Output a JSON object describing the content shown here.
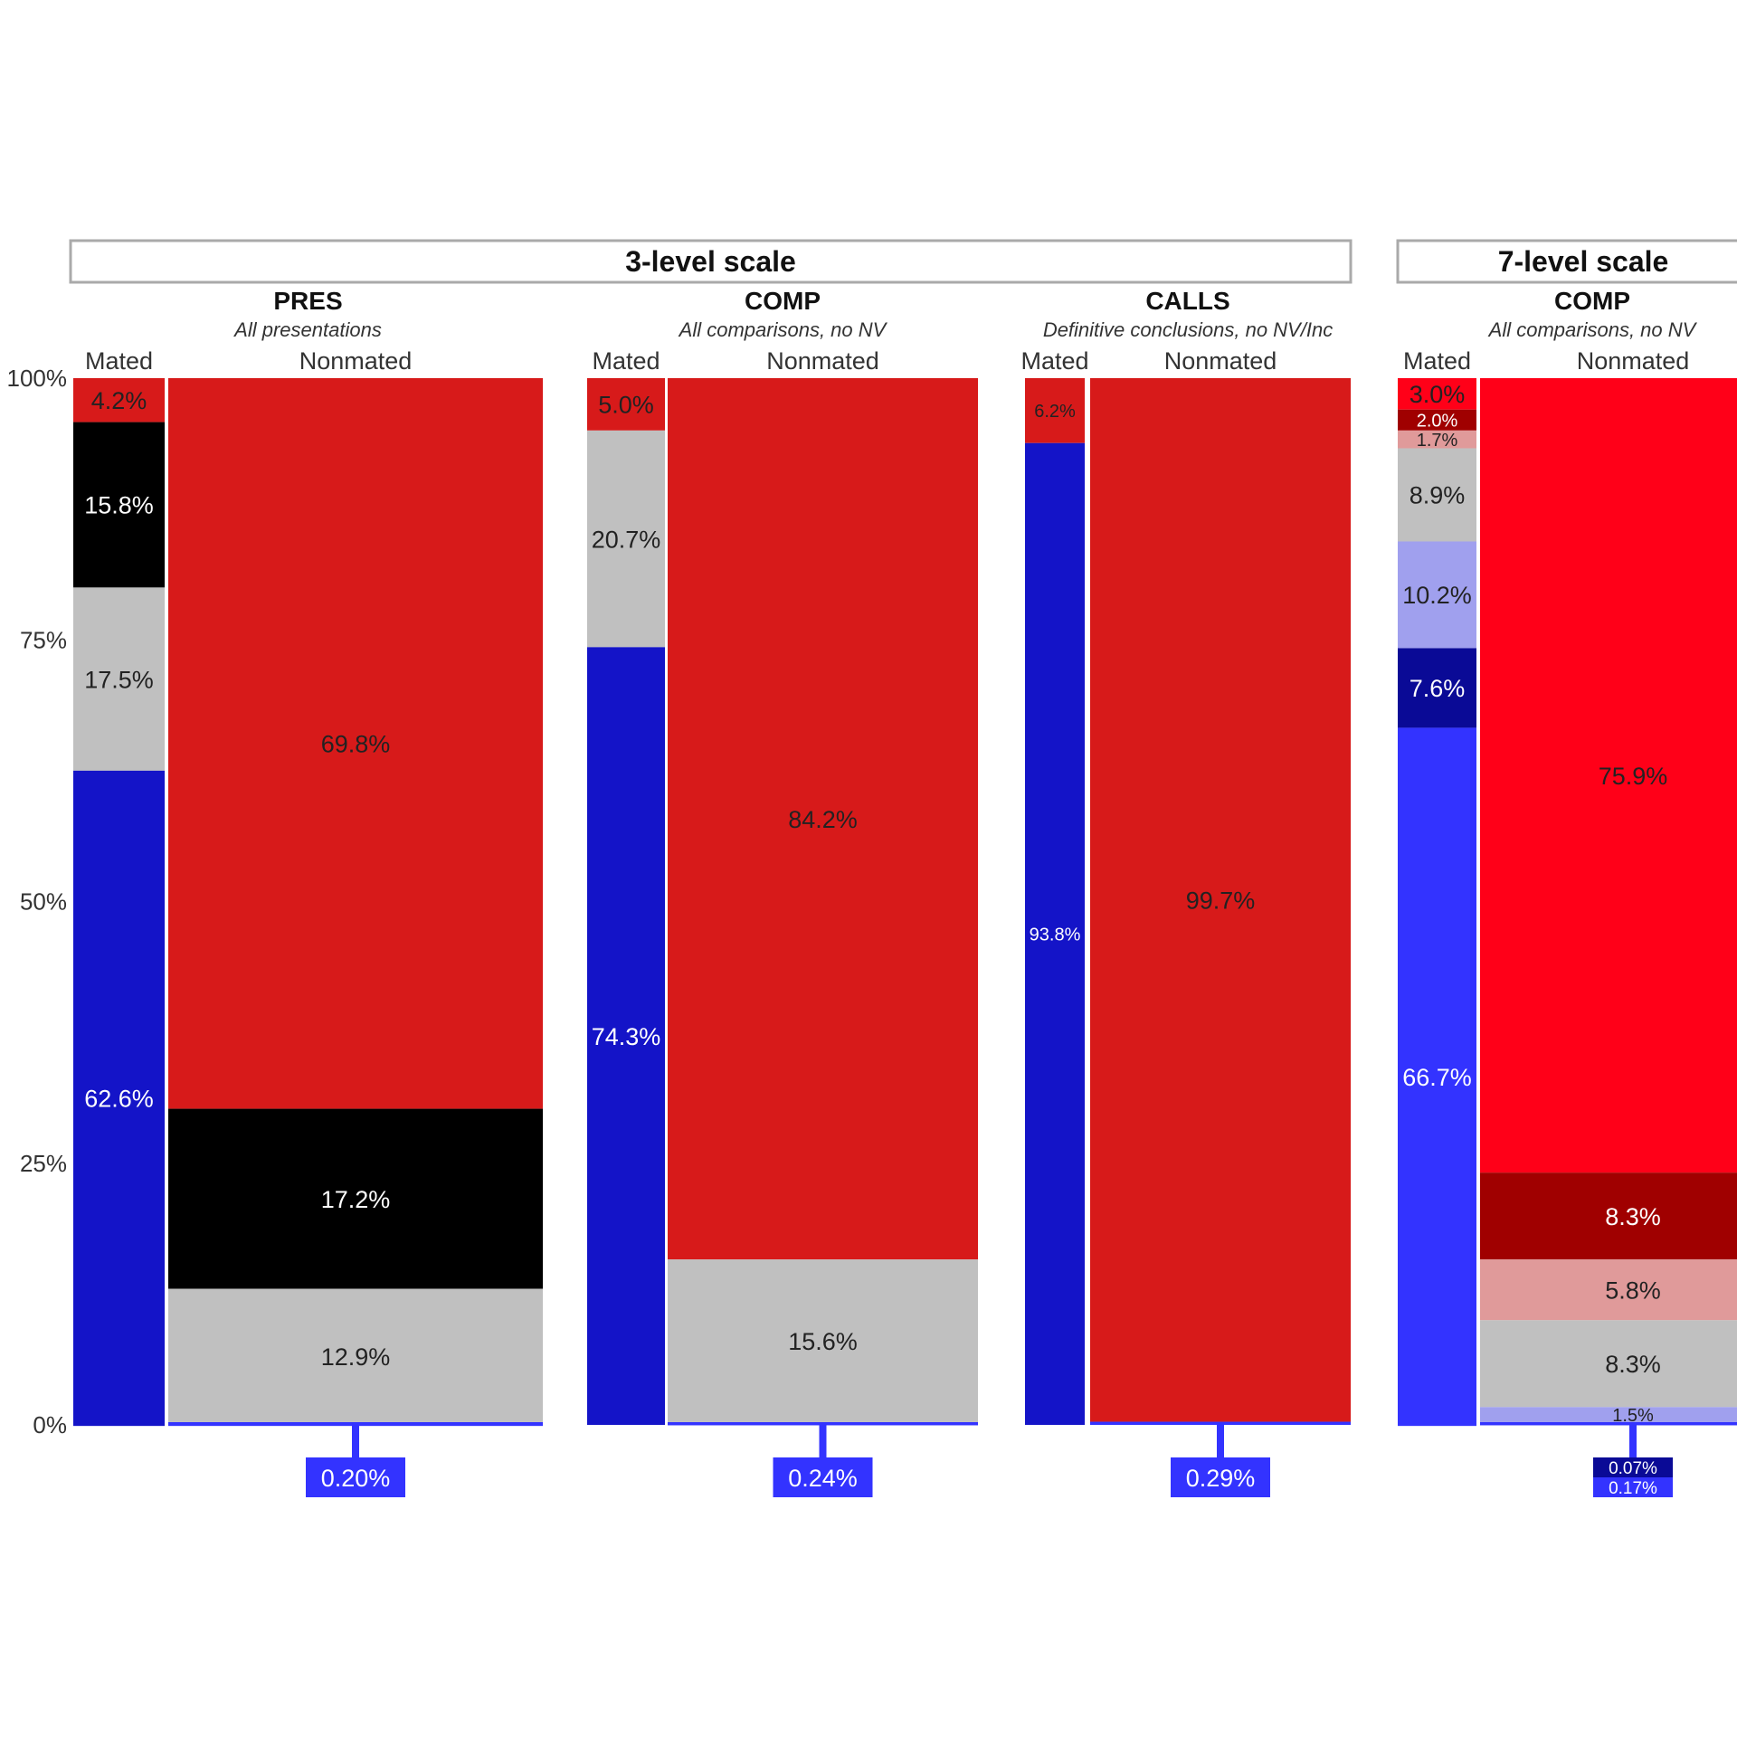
{
  "chart_data": {
    "type": "bar",
    "stacked": true,
    "ylim": [
      0,
      100
    ],
    "yticks": [
      "0%",
      "25%",
      "50%",
      "75%",
      "100%"
    ],
    "grid": false,
    "scale_groups": [
      "3-level scale",
      "7-level scale"
    ],
    "column_labels": {
      "mated": "Mated",
      "nonmated": "Nonmated"
    },
    "panels": [
      {
        "group": 0,
        "title": "PRES",
        "subtitle": "All presentations",
        "mated": [
          {
            "value": 4.2,
            "label": "4.2%",
            "color": "#d71a1a"
          },
          {
            "value": 15.8,
            "label": "15.8%",
            "color": "#000000"
          },
          {
            "value": 17.5,
            "label": "17.5%",
            "color": "#c0c0c0"
          },
          {
            "value": 62.6,
            "label": "62.6%",
            "color": "#1414c8"
          }
        ],
        "nonmated": [
          {
            "value": 69.8,
            "label": "69.8%",
            "color": "#d71a1a"
          },
          {
            "value": 17.2,
            "label": "17.2%",
            "color": "#000000"
          },
          {
            "value": 12.9,
            "label": "12.9%",
            "color": "#c0c0c0"
          },
          {
            "value": 0.2,
            "label": "0.20%",
            "color": "#3333ff"
          }
        ]
      },
      {
        "group": 0,
        "title": "COMP",
        "subtitle": "All comparisons, no NV",
        "mated": [
          {
            "value": 5.0,
            "label": "5.0%",
            "color": "#d71a1a"
          },
          {
            "value": 20.7,
            "label": "20.7%",
            "color": "#c0c0c0"
          },
          {
            "value": 74.3,
            "label": "74.3%",
            "color": "#1414c8"
          }
        ],
        "nonmated": [
          {
            "value": 84.2,
            "label": "84.2%",
            "color": "#d71a1a"
          },
          {
            "value": 15.6,
            "label": "15.6%",
            "color": "#c0c0c0"
          },
          {
            "value": 0.24,
            "label": "0.24%",
            "color": "#3333ff"
          }
        ]
      },
      {
        "group": 0,
        "title": "CALLS",
        "subtitle": "Definitive conclusions, no NV/Inc",
        "mated": [
          {
            "value": 6.2,
            "label": "6.2%",
            "color": "#d71a1a"
          },
          {
            "value": 93.8,
            "label": "93.8%",
            "color": "#1414c8"
          }
        ],
        "nonmated": [
          {
            "value": 99.7,
            "label": "99.7%",
            "color": "#d71a1a"
          },
          {
            "value": 0.29,
            "label": "0.29%",
            "color": "#3333ff"
          }
        ]
      },
      {
        "group": 1,
        "title": "COMP",
        "subtitle": "All comparisons, no NV",
        "mated": [
          {
            "value": 3.0,
            "label": "3.0%",
            "color": "#ff0018"
          },
          {
            "value": 2.0,
            "label": "2.0%",
            "color": "#a00000"
          },
          {
            "value": 1.7,
            "label": "1.7%",
            "color": "#e09a9a"
          },
          {
            "value": 8.9,
            "label": "8.9%",
            "color": "#c0c0c0"
          },
          {
            "value": 10.2,
            "label": "10.2%",
            "color": "#a0a0ee"
          },
          {
            "value": 7.6,
            "label": "7.6%",
            "color": "#0a0a96"
          },
          {
            "value": 66.7,
            "label": "66.7%",
            "color": "#3333ff"
          }
        ],
        "nonmated": [
          {
            "value": 75.9,
            "label": "75.9%",
            "color": "#ff0018"
          },
          {
            "value": 8.3,
            "label": "8.3%",
            "color": "#a00000"
          },
          {
            "value": 5.8,
            "label": "5.8%",
            "color": "#e09a9a"
          },
          {
            "value": 8.3,
            "label": "8.3%",
            "color": "#c0c0c0"
          },
          {
            "value": 1.5,
            "label": "1.5%",
            "color": "#a0a0ee"
          },
          {
            "value": 0.07,
            "label": "0.07%",
            "color": "#0a0a96"
          },
          {
            "value": 0.17,
            "label": "0.17%",
            "color": "#3333ff"
          }
        ]
      }
    ]
  }
}
